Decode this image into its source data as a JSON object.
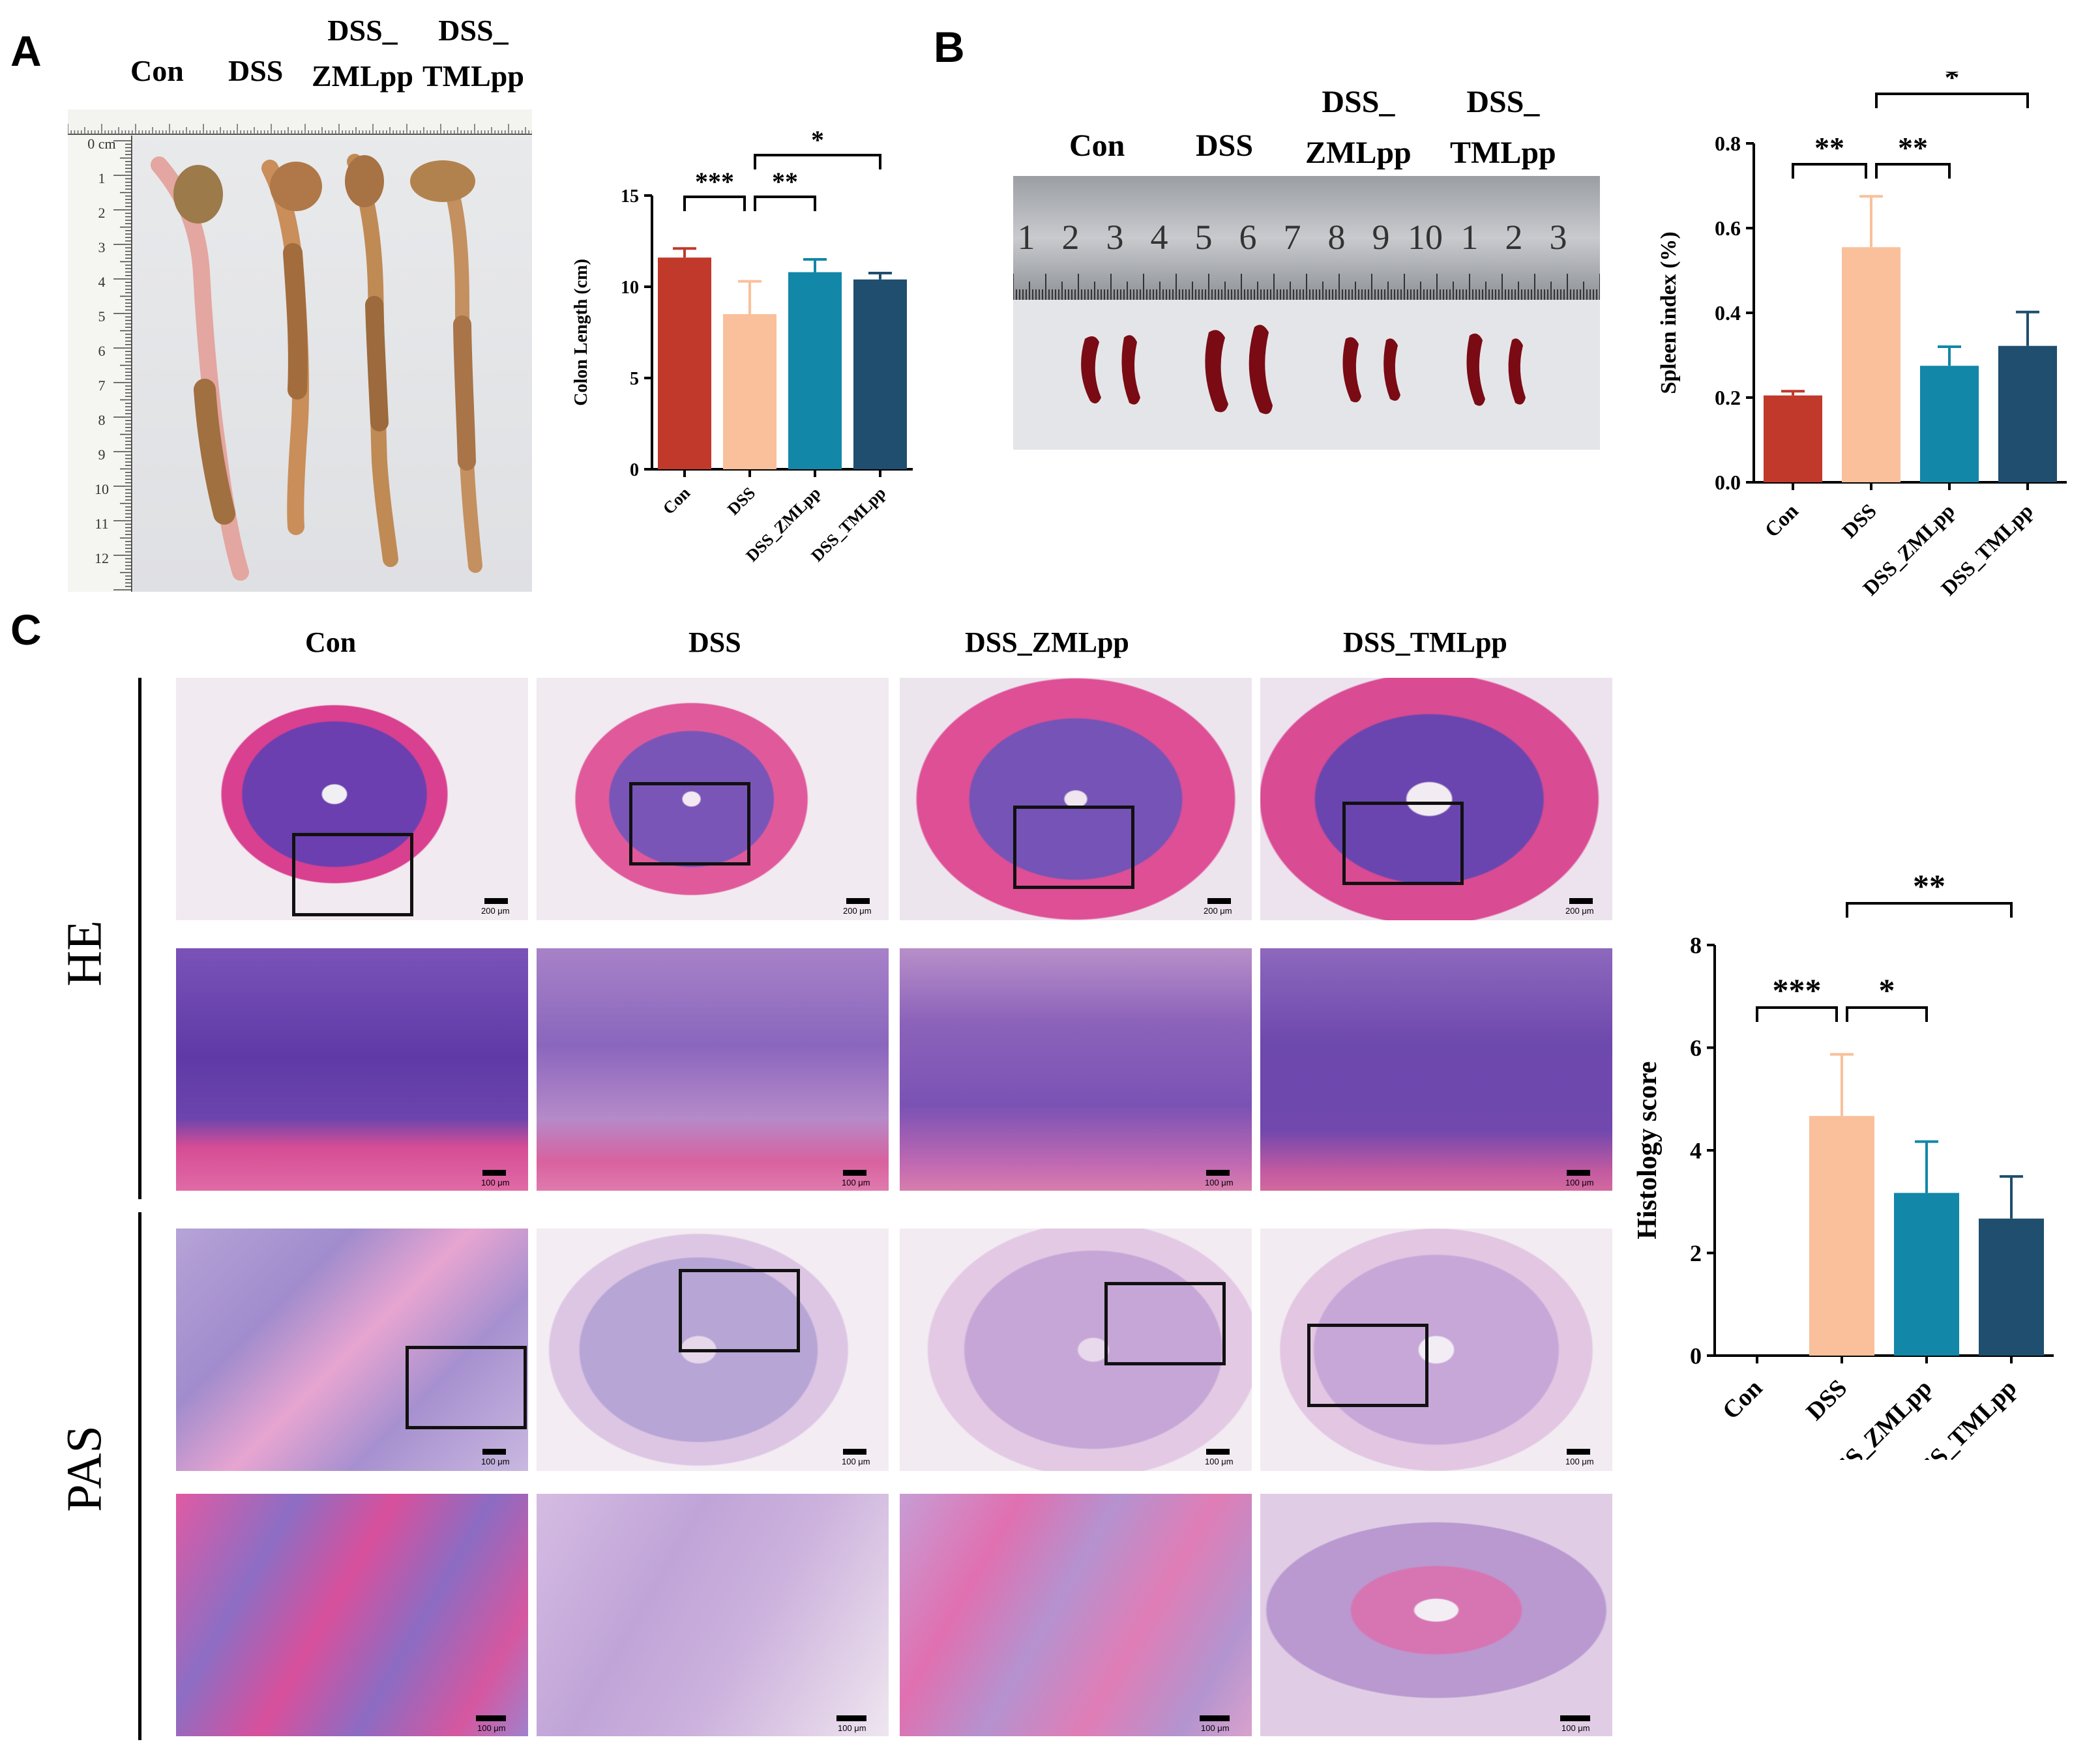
{
  "panels": {
    "A": {
      "letter": "A",
      "group_labels": [
        "Con",
        "DSS",
        "DSS_\nZMLpp",
        "DSS_\nTMLpp"
      ],
      "ruler_numbers": [
        "0 cm",
        "1",
        "2",
        "3",
        "4",
        "5",
        "6",
        "7",
        "8",
        "9",
        "10",
        "11",
        "12"
      ]
    },
    "B": {
      "letter": "B",
      "group_labels": [
        "Con",
        "DSS",
        "DSS_\nZMLpp",
        "DSS_\nTMLpp"
      ],
      "ruler_numbers": [
        "1",
        "2",
        "3",
        "4",
        "5",
        "6",
        "7",
        "8",
        "9",
        "10",
        "1",
        "2",
        "3"
      ]
    },
    "C": {
      "letter": "C",
      "col_labels": [
        "Con",
        "DSS",
        "DSS_ZMLpp",
        "DSS_TMLpp"
      ],
      "row_labels": [
        "HE",
        "PAS"
      ],
      "scale_labels": {
        "he_top": "200 μm",
        "he_bottom": "100 μm",
        "pas": "100 μm"
      }
    }
  },
  "chart_data": [
    {
      "id": "colon-length",
      "type": "bar",
      "categories": [
        "Con",
        "DSS",
        "DSS_ZMLpp",
        "DSS_TMLpp"
      ],
      "values": [
        11.6,
        8.5,
        10.8,
        10.4
      ],
      "errors": [
        0.5,
        1.8,
        0.7,
        0.35
      ],
      "ylabel": "Colon Length (cm)",
      "ylim": [
        0,
        15
      ],
      "yticks": [
        0,
        5,
        10,
        15
      ],
      "colors": [
        "#c0392b",
        "#f9c09b",
        "#1287a8",
        "#1f4e6e"
      ],
      "significance": [
        {
          "from": 0,
          "to": 1,
          "label": "***"
        },
        {
          "from": 1,
          "to": 2,
          "label": "**"
        },
        {
          "from": 1,
          "to": 3,
          "label": "*"
        }
      ]
    },
    {
      "id": "spleen-index",
      "type": "bar",
      "categories": [
        "Con",
        "DSS",
        "DSS_ZMLpp",
        "DSS_TMLpp"
      ],
      "values": [
        0.205,
        0.555,
        0.275,
        0.322
      ],
      "errors": [
        0.01,
        0.12,
        0.045,
        0.08
      ],
      "ylabel": "Spleen index (%)",
      "ylim": [
        0,
        0.8
      ],
      "yticks": [
        0.0,
        0.2,
        0.4,
        0.6,
        0.8
      ],
      "colors": [
        "#c0392b",
        "#f9c09b",
        "#1287a8",
        "#1f4e6e"
      ],
      "significance": [
        {
          "from": 0,
          "to": 1,
          "label": "**"
        },
        {
          "from": 1,
          "to": 2,
          "label": "**"
        },
        {
          "from": 1,
          "to": 3,
          "label": "*"
        }
      ]
    },
    {
      "id": "histology-score",
      "type": "bar",
      "categories": [
        "Con",
        "DSS",
        "DSS_ZMLpp",
        "DSS_TMLpp"
      ],
      "values": [
        0,
        4.67,
        3.17,
        2.67
      ],
      "errors": [
        0,
        1.2,
        1.0,
        0.82
      ],
      "ylabel": "Histology score",
      "ylim": [
        0,
        8
      ],
      "yticks": [
        0,
        2,
        4,
        6,
        8
      ],
      "colors": [
        "#c0392b",
        "#f9c09b",
        "#1287a8",
        "#1f4e6e"
      ],
      "significance": [
        {
          "from": 0,
          "to": 1,
          "label": "***"
        },
        {
          "from": 1,
          "to": 2,
          "label": "*"
        },
        {
          "from": 1,
          "to": 3,
          "label": "**"
        }
      ]
    }
  ]
}
